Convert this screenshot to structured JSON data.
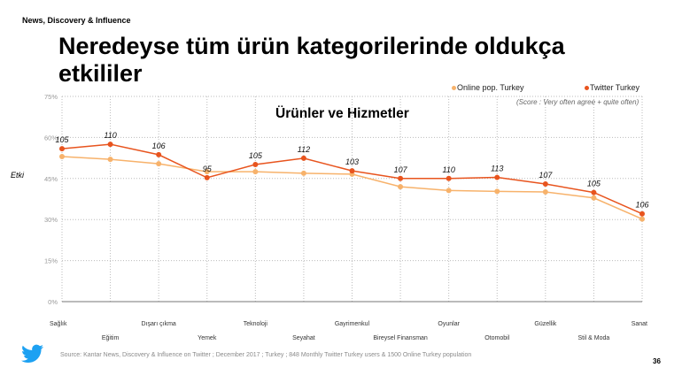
{
  "header": "News, Discovery  & Influence",
  "title": "Neredeyse tüm ürün kategorilerinde oldukça etkililer",
  "footer": {
    "source": "Source: Kantar News, Discovery & Influence on Twitter ; December 2017 ; Turkey ; 848 Monthly  Twitter Turkey users & 1500 Online Turkey population",
    "page": "36",
    "logo": "twitter-bird"
  },
  "chart_data": {
    "type": "line",
    "title": "Ürünler ve Hizmetler",
    "note": "(Score : Very often agree + quite often)",
    "ylabel": "Etki",
    "ylim": [
      0,
      75
    ],
    "yticks": [
      "0%",
      "15%",
      "30%",
      "45%",
      "60%",
      "75%"
    ],
    "grid": true,
    "legend_position": "top-right",
    "categories": [
      "Sağlık",
      "Eğitim",
      "Dışarı çıkma",
      "Yemek",
      "Teknoloji",
      "Seyahat",
      "Gayrimenkul",
      "Bireysel Finansman",
      "Oyunlar",
      "Otomobil",
      "Güzellik",
      "Stil & Moda",
      "Sanat"
    ],
    "series": [
      {
        "name": "Online pop. Turkey",
        "color": "#f7b26b",
        "values": [
          53.0,
          52.0,
          50.4,
          47.5,
          47.5,
          46.9,
          46.6,
          42.0,
          40.6,
          40.3,
          40.1,
          37.9,
          30.2
        ]
      },
      {
        "name": "Twitter Turkey",
        "color": "#e8541e",
        "values": [
          55.9,
          57.5,
          53.7,
          45.3,
          50.1,
          52.4,
          47.8,
          45.0,
          45.0,
          45.4,
          43.0,
          39.9,
          32.1
        ],
        "labels": [
          "105",
          "110",
          "106",
          "95",
          "105",
          "112",
          "103",
          "107",
          "110",
          "113",
          "107",
          "105",
          "106"
        ]
      }
    ]
  }
}
